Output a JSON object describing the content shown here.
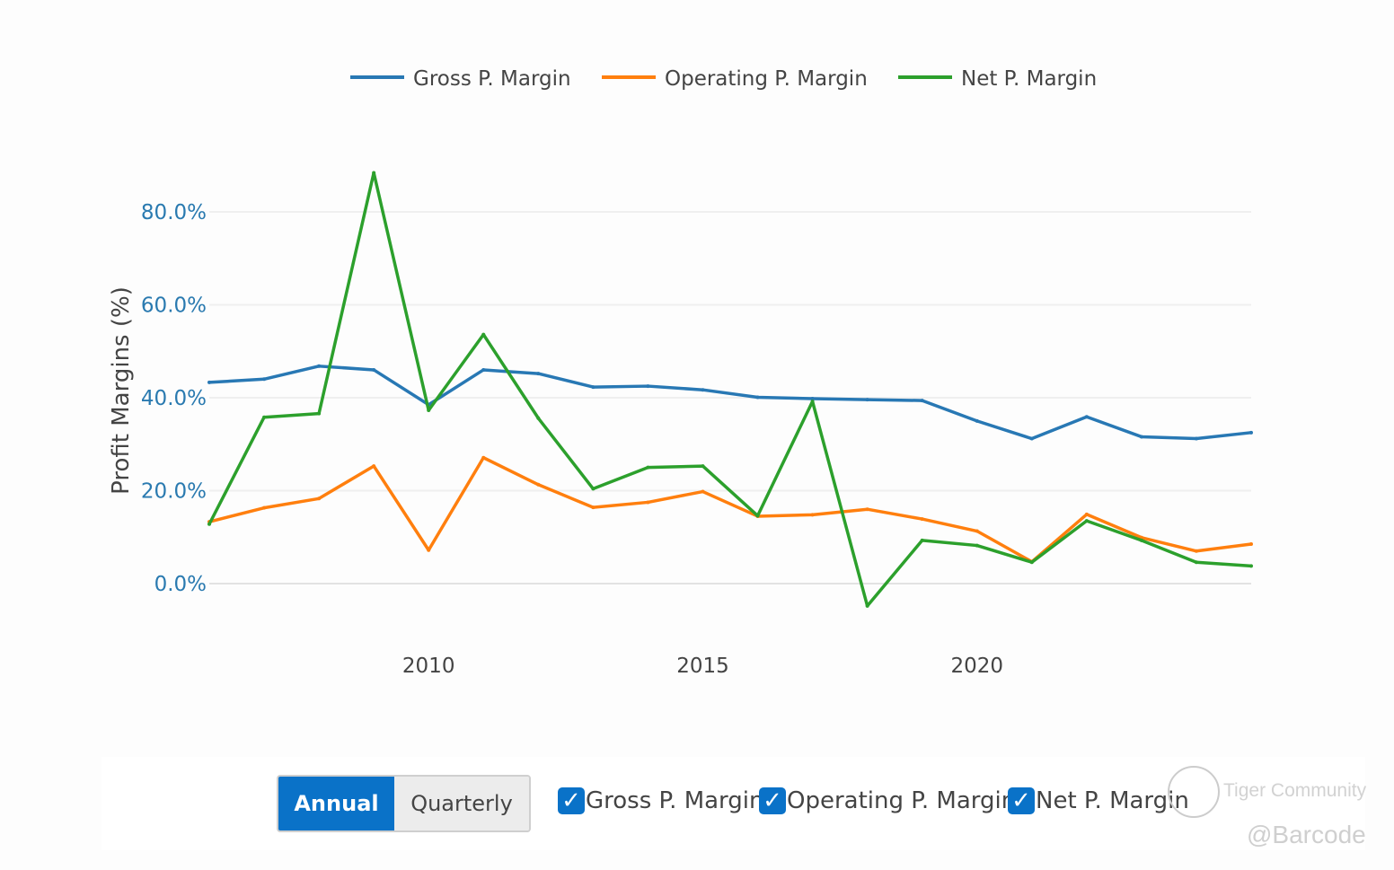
{
  "chart_data": {
    "type": "line",
    "ylabel": "Profit Margins (%)",
    "xlabel": "",
    "ylim": [
      -10,
      92
    ],
    "xlim": [
      2006,
      2025
    ],
    "y_ticks": [
      "0.0%",
      "20.0%",
      "40.0%",
      "60.0%",
      "80.0%"
    ],
    "y_tick_values": [
      0,
      20,
      40,
      60,
      80
    ],
    "x_ticks": [
      "2010",
      "2015",
      "2020"
    ],
    "x_tick_values": [
      2010,
      2015,
      2020
    ],
    "x": [
      2006,
      2007,
      2008,
      2009,
      2010,
      2011,
      2012,
      2013,
      2014,
      2015,
      2016,
      2017,
      2018,
      2019,
      2020,
      2021,
      2022,
      2023,
      2024,
      2025
    ],
    "series": [
      {
        "name": "Gross P. Margin",
        "color": "#2878b4",
        "values": [
          43.3,
          44.0,
          46.8,
          46.0,
          38.5,
          46.0,
          45.2,
          42.3,
          42.5,
          41.7,
          40.1,
          39.8,
          39.6,
          39.4,
          35.0,
          31.2,
          35.9,
          31.6,
          31.2,
          32.5
        ]
      },
      {
        "name": "Operating P. Margin",
        "color": "#ff7f0e",
        "values": [
          13.3,
          16.3,
          18.3,
          25.3,
          7.2,
          27.1,
          21.3,
          16.4,
          17.5,
          19.8,
          14.5,
          14.8,
          16.0,
          13.9,
          11.3,
          4.7,
          14.9,
          9.9,
          7.0,
          8.5
        ]
      },
      {
        "name": "Net P. Margin",
        "color": "#2ca02c",
        "values": [
          12.8,
          35.8,
          36.6,
          88.4,
          37.3,
          53.6,
          35.6,
          20.4,
          25.0,
          25.3,
          14.6,
          39.2,
          -4.8,
          9.3,
          8.2,
          4.6,
          13.5,
          9.3,
          4.6,
          3.8
        ]
      }
    ]
  },
  "controls": {
    "annual_label": "Annual",
    "quarterly_label": "Quarterly",
    "checkmark": "✓",
    "checkboxes": [
      "Gross P. Margin",
      "Operating P. Margin",
      "Net P. Margin"
    ]
  },
  "watermark": {
    "brand": "Tiger Community",
    "handle": "@Barcode"
  }
}
